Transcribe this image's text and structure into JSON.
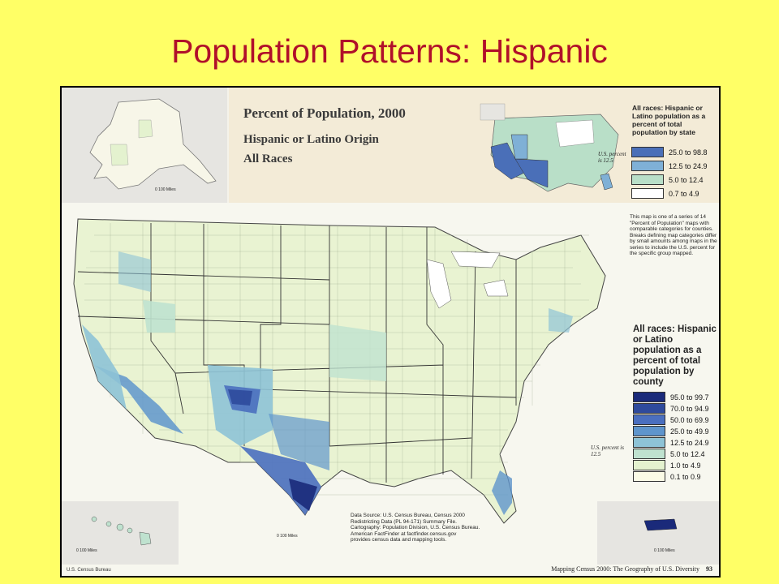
{
  "slide": {
    "title": "Population Patterns: Hispanic"
  },
  "map": {
    "title_line1": "Percent of Population, 2000",
    "title_line2": "Hispanic or Latino Origin",
    "title_line3": "All Races",
    "state_legend": {
      "title": "All races: Hispanic or Latino population as a percent of total population by state",
      "us_percent": "U.S. percent is 12.5",
      "classes": [
        {
          "label": "25.0 to 98.8",
          "color": "#4a6fb8"
        },
        {
          "label": "12.5 to 24.9",
          "color": "#7fb0d6"
        },
        {
          "label": "5.0 to 12.4",
          "color": "#b9dfc8"
        },
        {
          "label": "0.7 to 4.9",
          "color": "#ffffff"
        }
      ]
    },
    "county_legend": {
      "title": "All races: Hispanic or Latino population as a percent of total population by county",
      "us_percent": "U.S. percent is 12.5",
      "classes": [
        {
          "label": "95.0 to 99.7",
          "color": "#1a2a7a"
        },
        {
          "label": "70.0 to 94.9",
          "color": "#2e4a9c"
        },
        {
          "label": "50.0 to 69.9",
          "color": "#4a6fbf"
        },
        {
          "label": "25.0 to 49.9",
          "color": "#5f95cc"
        },
        {
          "label": "12.5 to 24.9",
          "color": "#8ec3d6"
        },
        {
          "label": "5.0 to 12.4",
          "color": "#bfe2cf"
        },
        {
          "label": "1.0 to 4.9",
          "color": "#e4f2cf"
        },
        {
          "label": "0.1 to 0.9",
          "color": "#fbfbe6"
        }
      ]
    },
    "series_note": "This map is one of a series of 14 \"Percent of Population\" maps with comparable categories for counties. Breaks defining map categories differ by small amounts among maps in the series to include the U.S. percent for the specific group mapped.",
    "source_lines": [
      "Data Source: U.S. Census Bureau, Census 2000",
      "Redistricting Data (PL 94-171) Summary File.",
      "Cartography: Population Division, U.S. Census Bureau.",
      "American FactFinder at factfinder.census.gov",
      "provides census data and mapping tools."
    ],
    "scale_alaska": "0   100 Miles",
    "scale_hawaii": "0   100 Miles",
    "scale_main": "0   100 Miles",
    "scale_pr": "0   100 Miles",
    "footer_left": "U.S. Census Bureau",
    "footer_right": "Mapping Census 2000: The Geography of U.S. Diversity",
    "page_number": "93"
  }
}
